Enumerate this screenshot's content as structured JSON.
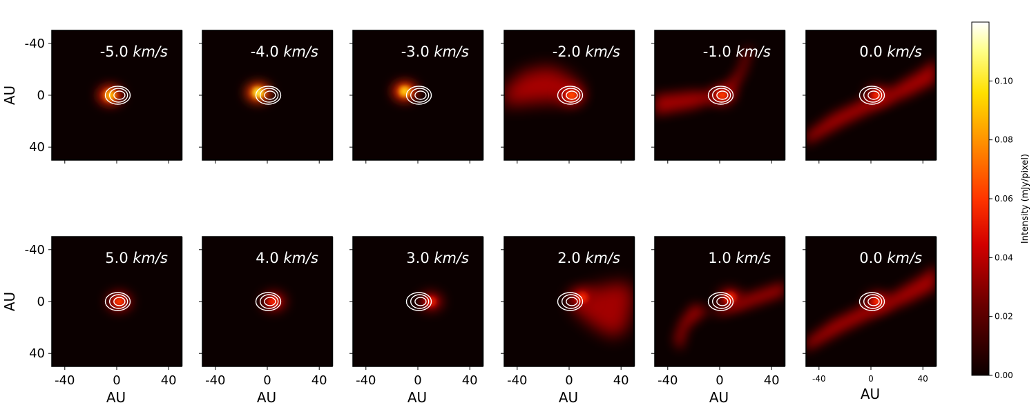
{
  "chart_data": {
    "type": "heatmap",
    "description_units": {
      "x": "AU",
      "y": "AU",
      "intensity": "mJy/pixel"
    },
    "axis_range": {
      "x": [
        -50,
        50
      ],
      "y": [
        -50,
        50
      ]
    },
    "axis_ticks": [
      -40,
      0,
      40
    ],
    "axis_tick_labels": [
      "-40",
      "0",
      "40"
    ],
    "y_axis_label": "AU",
    "x_axis_label": "AU",
    "velocity_unit": "km/s",
    "colorbar": {
      "label": "Intensity (mJy/pixel)",
      "range": [
        0,
        0.12
      ],
      "ticks": [
        0.0,
        0.02,
        0.04,
        0.06,
        0.08,
        0.1
      ],
      "tick_labels": [
        "0.00",
        "0.02",
        "0.04",
        "0.06",
        "0.08",
        "0.10"
      ],
      "colormap": "hot"
    },
    "rows": [
      {
        "panels": [
          {
            "velocity": "-5.0",
            "peak_position_au": [
              -5,
              0
            ],
            "peak_intensity": 0.095
          },
          {
            "velocity": "-4.0",
            "peak_position_au": [
              -7,
              -2
            ],
            "peak_intensity": 0.11
          },
          {
            "velocity": "-3.0",
            "peak_position_au": [
              -10,
              -3
            ],
            "peak_intensity": 0.1
          },
          {
            "velocity": "-2.0",
            "peak_position_au": [
              2,
              0
            ],
            "peak_intensity": 0.07
          },
          {
            "velocity": "-1.0",
            "peak_position_au": [
              2,
              0
            ],
            "peak_intensity": 0.065
          },
          {
            "velocity": "0.0",
            "peak_position_au": [
              5,
              0
            ],
            "peak_intensity": 0.06
          }
        ]
      },
      {
        "panels": [
          {
            "velocity": "5.0",
            "peak_position_au": [
              2,
              0
            ],
            "peak_intensity": 0.065
          },
          {
            "velocity": "4.0",
            "peak_position_au": [
              5,
              0
            ],
            "peak_intensity": 0.06
          },
          {
            "velocity": "3.0",
            "peak_position_au": [
              10,
              0
            ],
            "peak_intensity": 0.055
          },
          {
            "velocity": "2.0",
            "peak_position_au": [
              10,
              -3
            ],
            "peak_intensity": 0.06
          },
          {
            "velocity": "1.0",
            "peak_position_au": [
              8,
              -3
            ],
            "peak_intensity": 0.06
          },
          {
            "velocity": "0.0",
            "peak_position_au": [
              5,
              0
            ],
            "peak_intensity": 0.06
          }
        ]
      }
    ],
    "contours": {
      "center_au": [
        0,
        0
      ],
      "levels": 3
    }
  }
}
